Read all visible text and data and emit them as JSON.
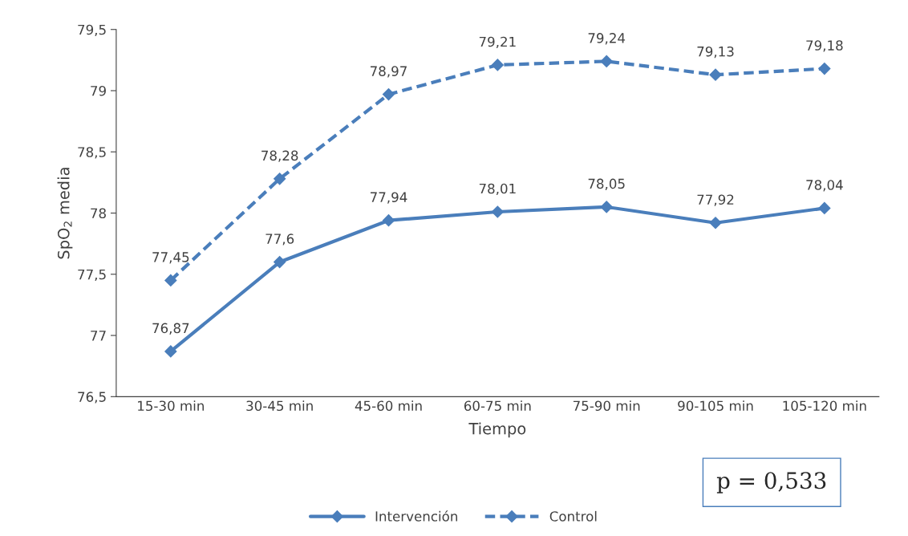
{
  "chart_data": {
    "type": "line",
    "xlabel": "Tiempo",
    "ylabel": "SpO$_{2}$ media",
    "categories": [
      "15-30 min",
      "30-45 min",
      "45-60 min",
      "60-75 min",
      "75-90 min",
      "90-105 min",
      "105-120 min"
    ],
    "series": [
      {
        "name": "Intervención",
        "color": "#4a7ebb",
        "line_style": "solid",
        "values": [
          76.87,
          77.6,
          77.94,
          78.01,
          78.05,
          77.92,
          78.04
        ],
        "value_labels": [
          "76,87",
          "77,6",
          "77,94",
          "78,01",
          "78,05",
          "77,92",
          "78,04"
        ]
      },
      {
        "name": "Control",
        "color": "#4a7ebb",
        "line_style": "dashed",
        "values": [
          77.45,
          78.28,
          78.97,
          79.21,
          79.24,
          79.13,
          79.18
        ],
        "value_labels": [
          "77,45",
          "78,28",
          "78,97",
          "79,21",
          "79,24",
          "79,13",
          "79,18"
        ]
      }
    ],
    "ylim": [
      76.5,
      79.5
    ],
    "yticks": [
      {
        "value": 76.5,
        "label": "76,5"
      },
      77,
      {
        "value": 77.5,
        "label": "77,5"
      },
      78,
      {
        "value": 78.5,
        "label": "78,5"
      },
      79,
      {
        "value": 79.5,
        "label": "79,5"
      }
    ],
    "marker": "diamond",
    "grid": false,
    "legend": "bottom",
    "annotations": [
      "p = 0,533"
    ]
  }
}
